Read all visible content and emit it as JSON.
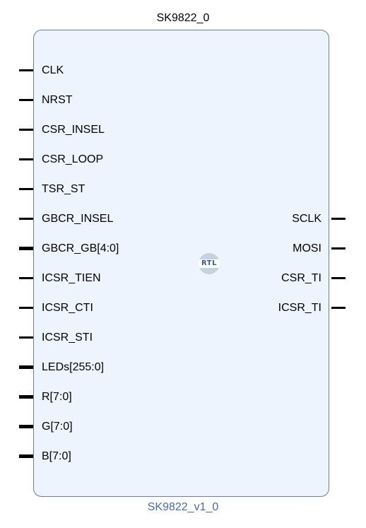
{
  "instance_name": "SK9822_0",
  "module_name": "SK9822_v1_0",
  "badge": "RTL",
  "inputs": [
    {
      "label": "CLK",
      "bus": false
    },
    {
      "label": "NRST",
      "bus": false
    },
    {
      "label": "CSR_INSEL",
      "bus": false
    },
    {
      "label": "CSR_LOOP",
      "bus": false
    },
    {
      "label": "TSR_ST",
      "bus": false
    },
    {
      "label": "GBCR_INSEL",
      "bus": false
    },
    {
      "label": "GBCR_GB[4:0]",
      "bus": true
    },
    {
      "label": "ICSR_TIEN",
      "bus": false
    },
    {
      "label": "ICSR_CTI",
      "bus": false
    },
    {
      "label": "ICSR_STI",
      "bus": false
    },
    {
      "label": "LEDs[255:0]",
      "bus": true
    },
    {
      "label": "R[7:0]",
      "bus": true
    },
    {
      "label": "G[7:0]",
      "bus": true
    },
    {
      "label": "B[7:0]",
      "bus": true
    }
  ],
  "outputs": [
    {
      "label": "SCLK",
      "bus": false
    },
    {
      "label": "MOSI",
      "bus": false
    },
    {
      "label": "CSR_TI",
      "bus": false
    },
    {
      "label": "ICSR_TI",
      "bus": false
    }
  ],
  "colors": {
    "block_fill": "#edf4fd",
    "block_border": "#6d7d9a",
    "pin": "#000000",
    "module_name": "#4a6aa0",
    "badge": "#c6d2dc"
  }
}
